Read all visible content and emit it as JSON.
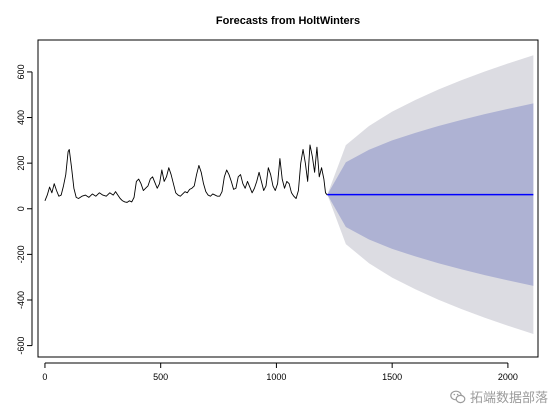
{
  "chart_data": {
    "type": "line",
    "title": "Forecasts from HoltWinters",
    "xlabel": "",
    "ylabel": "",
    "xlim": [
      -30,
      2130
    ],
    "ylim": [
      -650,
      740
    ],
    "x_ticks": [
      0,
      500,
      1000,
      1500,
      2000
    ],
    "y_ticks": [
      -600,
      -400,
      -200,
      0,
      200,
      400,
      600
    ],
    "grid": false,
    "legend": "none",
    "series": [
      {
        "role": "observed",
        "color": "#000000",
        "points": [
          [
            0,
            35
          ],
          [
            10,
            60
          ],
          [
            20,
            95
          ],
          [
            30,
            70
          ],
          [
            40,
            110
          ],
          [
            50,
            80
          ],
          [
            60,
            55
          ],
          [
            70,
            60
          ],
          [
            80,
            100
          ],
          [
            90,
            150
          ],
          [
            100,
            250
          ],
          [
            105,
            260
          ],
          [
            115,
            180
          ],
          [
            125,
            90
          ],
          [
            135,
            50
          ],
          [
            145,
            45
          ],
          [
            160,
            55
          ],
          [
            175,
            60
          ],
          [
            190,
            50
          ],
          [
            205,
            65
          ],
          [
            220,
            55
          ],
          [
            235,
            70
          ],
          [
            250,
            60
          ],
          [
            265,
            55
          ],
          [
            280,
            70
          ],
          [
            295,
            60
          ],
          [
            305,
            75
          ],
          [
            315,
            60
          ],
          [
            325,
            45
          ],
          [
            335,
            35
          ],
          [
            345,
            30
          ],
          [
            355,
            28
          ],
          [
            365,
            35
          ],
          [
            375,
            30
          ],
          [
            385,
            50
          ],
          [
            395,
            120
          ],
          [
            405,
            130
          ],
          [
            415,
            110
          ],
          [
            425,
            80
          ],
          [
            435,
            90
          ],
          [
            445,
            100
          ],
          [
            455,
            130
          ],
          [
            465,
            140
          ],
          [
            475,
            115
          ],
          [
            485,
            90
          ],
          [
            495,
            110
          ],
          [
            505,
            170
          ],
          [
            515,
            120
          ],
          [
            525,
            140
          ],
          [
            535,
            180
          ],
          [
            545,
            150
          ],
          [
            555,
            110
          ],
          [
            565,
            70
          ],
          [
            575,
            60
          ],
          [
            585,
            55
          ],
          [
            595,
            65
          ],
          [
            605,
            75
          ],
          [
            615,
            70
          ],
          [
            625,
            85
          ],
          [
            635,
            90
          ],
          [
            645,
            100
          ],
          [
            655,
            150
          ],
          [
            665,
            190
          ],
          [
            675,
            160
          ],
          [
            685,
            110
          ],
          [
            695,
            75
          ],
          [
            705,
            60
          ],
          [
            715,
            55
          ],
          [
            725,
            65
          ],
          [
            735,
            60
          ],
          [
            745,
            55
          ],
          [
            755,
            55
          ],
          [
            765,
            75
          ],
          [
            775,
            140
          ],
          [
            785,
            170
          ],
          [
            795,
            150
          ],
          [
            805,
            120
          ],
          [
            815,
            85
          ],
          [
            825,
            90
          ],
          [
            835,
            140
          ],
          [
            845,
            150
          ],
          [
            855,
            110
          ],
          [
            865,
            90
          ],
          [
            875,
            120
          ],
          [
            885,
            95
          ],
          [
            895,
            70
          ],
          [
            905,
            90
          ],
          [
            915,
            120
          ],
          [
            925,
            160
          ],
          [
            935,
            120
          ],
          [
            945,
            80
          ],
          [
            955,
            100
          ],
          [
            965,
            180
          ],
          [
            975,
            150
          ],
          [
            985,
            100
          ],
          [
            995,
            80
          ],
          [
            1005,
            110
          ],
          [
            1015,
            220
          ],
          [
            1025,
            130
          ],
          [
            1035,
            90
          ],
          [
            1045,
            120
          ],
          [
            1055,
            110
          ],
          [
            1065,
            70
          ],
          [
            1075,
            55
          ],
          [
            1085,
            45
          ],
          [
            1095,
            80
          ],
          [
            1105,
            200
          ],
          [
            1115,
            260
          ],
          [
            1125,
            200
          ],
          [
            1135,
            120
          ],
          [
            1145,
            280
          ],
          [
            1155,
            230
          ],
          [
            1165,
            160
          ],
          [
            1175,
            270
          ],
          [
            1185,
            140
          ],
          [
            1195,
            180
          ],
          [
            1205,
            130
          ],
          [
            1212,
            70
          ],
          [
            1220,
            60
          ]
        ]
      },
      {
        "role": "forecast",
        "color": "#0000ff",
        "points": [
          [
            1220,
            62
          ],
          [
            2110,
            62
          ]
        ]
      }
    ],
    "intervals": [
      {
        "level": "outer",
        "color": "#dcdce2",
        "x": [
          1220,
          1300,
          1400,
          1500,
          1600,
          1700,
          1800,
          1900,
          2000,
          2110
        ],
        "lower": [
          62,
          -155,
          -239,
          -302,
          -353,
          -399,
          -440,
          -478,
          -513,
          -549
        ],
        "upper": [
          62,
          279,
          363,
          426,
          477,
          523,
          564,
          602,
          637,
          673
        ]
      },
      {
        "level": "inner",
        "color": "#aeb2d3",
        "x": [
          1220,
          1300,
          1400,
          1500,
          1600,
          1700,
          1800,
          1900,
          2000,
          2110
        ],
        "lower": [
          62,
          -80,
          -135,
          -176,
          -209,
          -239,
          -266,
          -291,
          -314,
          -338
        ],
        "upper": [
          62,
          204,
          259,
          300,
          333,
          363,
          390,
          415,
          438,
          462
        ]
      }
    ]
  },
  "watermark": {
    "text": "拓端数据部落"
  }
}
